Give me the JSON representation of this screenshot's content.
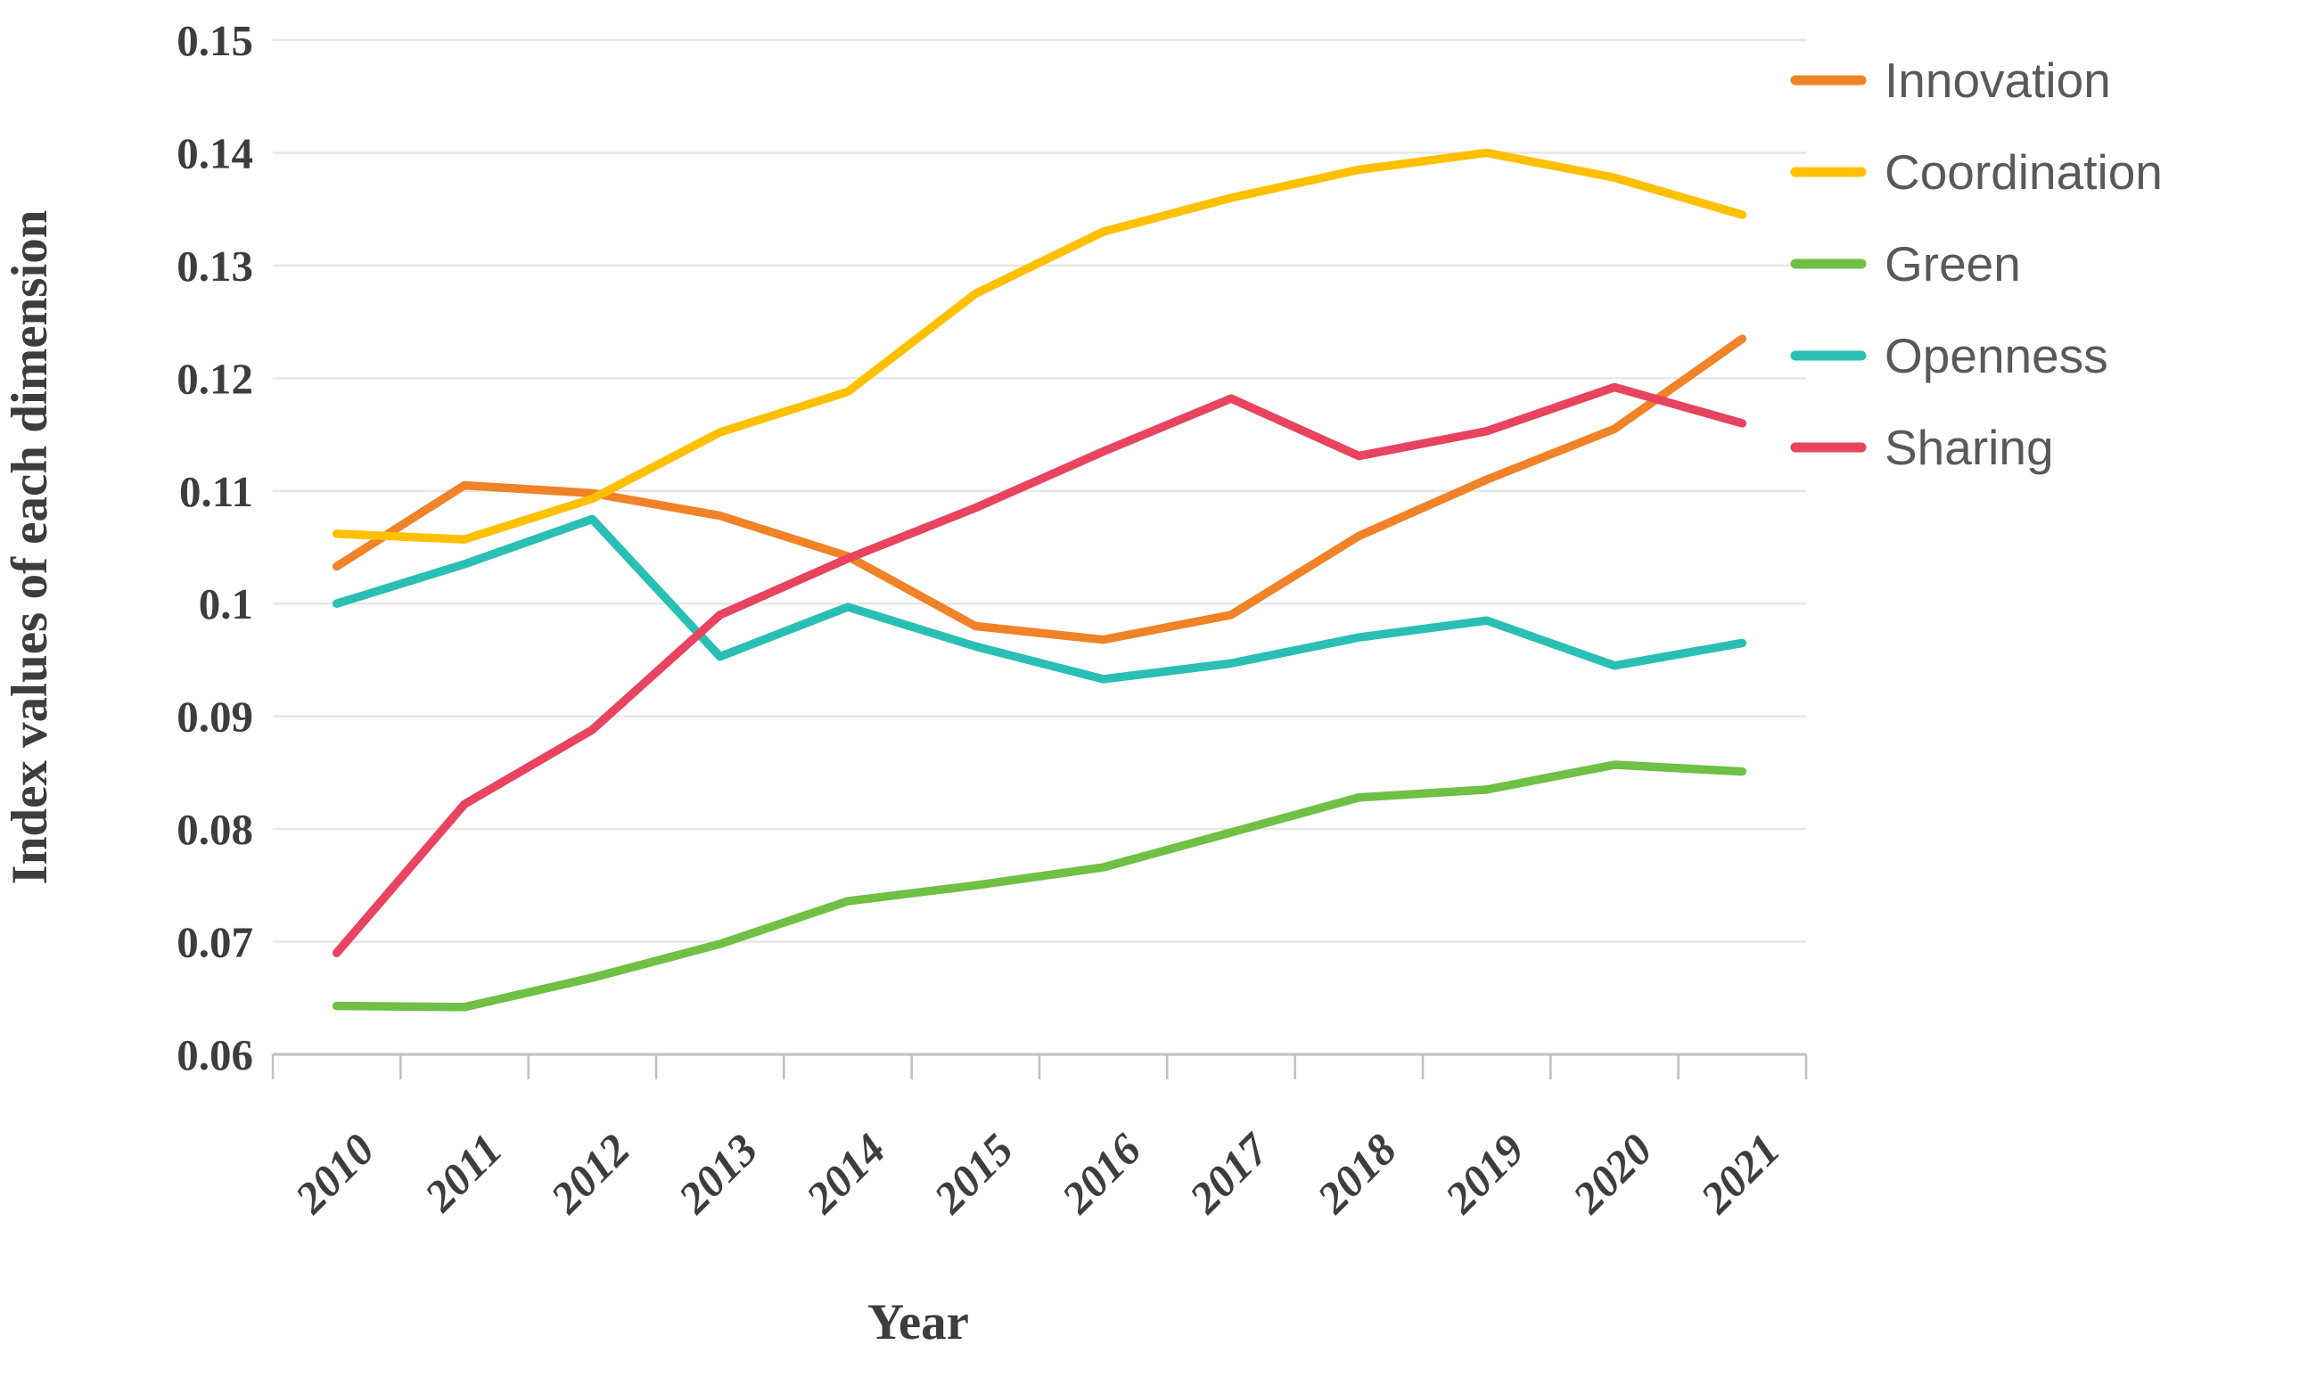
{
  "chart_data": {
    "type": "line",
    "title": "",
    "xlabel": "Year",
    "ylabel": "Index values of each dimension",
    "categories": [
      "2010",
      "2011",
      "2012",
      "2013",
      "2014",
      "2015",
      "2016",
      "2017",
      "2018",
      "2019",
      "2020",
      "2021"
    ],
    "series": [
      {
        "name": "Innovation",
        "color": "#F08228",
        "values": [
          0.1033,
          0.1105,
          0.1098,
          0.1078,
          0.1042,
          0.098,
          0.0968,
          0.099,
          0.106,
          0.111,
          0.1155,
          0.1235
        ]
      },
      {
        "name": "Coordination",
        "color": "#FFC000",
        "values": [
          0.1062,
          0.1057,
          0.1093,
          0.1152,
          0.1188,
          0.1275,
          0.133,
          0.136,
          0.1385,
          0.14,
          0.1378,
          0.1345
        ]
      },
      {
        "name": "Green",
        "color": "#6FC044",
        "values": [
          0.0643,
          0.0642,
          0.0668,
          0.0698,
          0.0736,
          0.075,
          0.0766,
          0.0797,
          0.0828,
          0.0835,
          0.0857,
          0.0851
        ]
      },
      {
        "name": "Openness",
        "color": "#2ABFB4",
        "values": [
          0.1,
          0.1035,
          0.1075,
          0.0953,
          0.0997,
          0.0962,
          0.0933,
          0.0947,
          0.097,
          0.0985,
          0.0945,
          0.0965
        ]
      },
      {
        "name": "Sharing",
        "color": "#E8435F",
        "values": [
          0.069,
          0.0822,
          0.0888,
          0.099,
          0.104,
          0.1085,
          0.1135,
          0.1182,
          0.1131,
          0.1153,
          0.1192,
          0.116
        ]
      }
    ],
    "ylim": [
      0.06,
      0.15
    ],
    "ytick_step": 0.01,
    "grid": "horizontal",
    "legend_position": "top-right",
    "axis_color": "#BFBFBF",
    "gridline_color": "#E7E7E7",
    "tick_label_color": "#3D3D3D",
    "legend_text_color": "#595959"
  }
}
